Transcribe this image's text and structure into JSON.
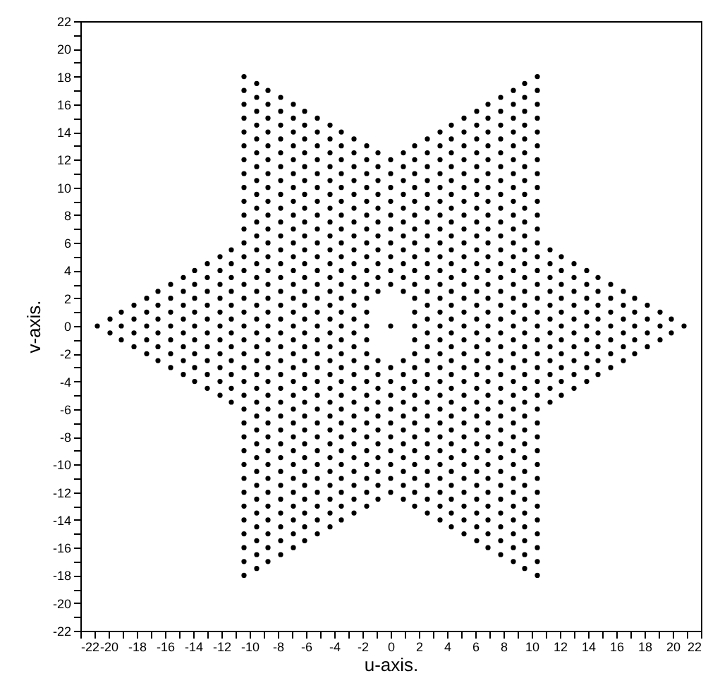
{
  "chart_data": {
    "type": "scatter",
    "xlabel": "u-axis.",
    "ylabel": "v-axis.",
    "marker": "circle",
    "grid": false,
    "xlim": [
      -22,
      22
    ],
    "ylim": [
      -22,
      22
    ],
    "xticks": [
      -22,
      {
        "value": -21,
        "label": null
      },
      -20,
      {
        "value": -19,
        "label": null
      },
      -18,
      {
        "value": -17,
        "label": null
      },
      -16,
      {
        "value": -15,
        "label": null
      },
      -14,
      {
        "value": -13,
        "label": null
      },
      -12,
      {
        "value": -11,
        "label": null
      },
      -10,
      {
        "value": -9,
        "label": null
      },
      -8,
      {
        "value": -7,
        "label": null
      },
      -6,
      {
        "value": -5,
        "label": null
      },
      -4,
      {
        "value": -3,
        "label": null
      },
      -2,
      {
        "value": -1,
        "label": null
      },
      0,
      {
        "value": 1,
        "label": null
      },
      2,
      {
        "value": 3,
        "label": null
      },
      4,
      {
        "value": 5,
        "label": null
      },
      6,
      {
        "value": 7,
        "label": null
      },
      8,
      {
        "value": 9,
        "label": null
      },
      10,
      {
        "value": 11,
        "label": null
      },
      12,
      {
        "value": 13,
        "label": null
      },
      14,
      {
        "value": 15,
        "label": null
      },
      16,
      {
        "value": 17,
        "label": null
      },
      18,
      {
        "value": 19,
        "label": null
      },
      20,
      {
        "value": 21,
        "label": null
      },
      22
    ],
    "yticks": [
      -22,
      {
        "value": -21,
        "label": null
      },
      -20,
      {
        "value": -19,
        "label": null
      },
      -18,
      {
        "value": -17,
        "label": null
      },
      -16,
      {
        "value": -15,
        "label": null
      },
      -14,
      {
        "value": -13,
        "label": null
      },
      -12,
      {
        "value": -11,
        "label": null
      },
      -10,
      {
        "value": -9,
        "label": null
      },
      -8,
      {
        "value": -7,
        "label": null
      },
      -6,
      {
        "value": -5,
        "label": null
      },
      -4,
      {
        "value": -3,
        "label": null
      },
      -2,
      {
        "value": -1,
        "label": null
      },
      0,
      {
        "value": 1,
        "label": null
      },
      2,
      {
        "value": 3,
        "label": null
      },
      4,
      {
        "value": 5,
        "label": null
      },
      6,
      {
        "value": 7,
        "label": null
      },
      8,
      {
        "value": 9,
        "label": null
      },
      10,
      {
        "value": 11,
        "label": null
      },
      12,
      {
        "value": 13,
        "label": null
      },
      14,
      {
        "value": 15,
        "label": null
      },
      16,
      {
        "value": 17,
        "label": null
      },
      18,
      {
        "value": 19,
        "label": null
      },
      20,
      {
        "value": 21,
        "label": null
      },
      22
    ],
    "series": [
      {
        "color": "#000000",
        "x": [
          -20.8
        ],
        "values": [
          0
        ]
      },
      {
        "color": "#000000",
        "x": [
          -19.9,
          -19.9
        ],
        "values": [
          -0.5,
          0.5
        ]
      },
      {
        "color": "#000000",
        "x": [
          -19.1,
          -19.1,
          -19.1
        ],
        "values": [
          -1,
          0,
          1
        ]
      },
      {
        "color": "#000000",
        "x": [
          -18.2,
          -18.2,
          -18.2,
          -18.2
        ],
        "values": [
          -1.5,
          -0.5,
          0.5,
          1.5
        ]
      },
      {
        "color": "#000000",
        "x": [
          -17.3,
          -17.3,
          -17.3,
          -17.3,
          -17.3
        ],
        "values": [
          -2,
          -1,
          0,
          1,
          2
        ]
      },
      {
        "color": "#000000",
        "x": [
          -16.5,
          -16.5,
          -16.5,
          -16.5,
          -16.5,
          -16.5
        ],
        "values": [
          -2.5,
          -1.5,
          -0.5,
          0.5,
          1.5,
          2.5
        ]
      },
      {
        "color": "#000000",
        "x": [
          -15.6,
          -15.6,
          -15.6,
          -15.6,
          -15.6,
          -15.6,
          -15.6
        ],
        "values": [
          -3,
          -2,
          -1,
          0,
          1,
          2,
          3
        ]
      },
      {
        "color": "#000000",
        "x": [
          -14.7,
          -14.7,
          -14.7,
          -14.7,
          -14.7,
          -14.7,
          -14.7,
          -14.7
        ],
        "values": [
          -3.5,
          -2.5,
          -1.5,
          -0.5,
          0.5,
          1.5,
          2.5,
          3.5
        ]
      },
      {
        "color": "#000000",
        "x": [
          -13.9,
          -13.9,
          -13.9,
          -13.9,
          -13.9,
          -13.9,
          -13.9,
          -13.9,
          -13.9
        ],
        "values": [
          -4,
          -3,
          -2,
          -1,
          0,
          1,
          2,
          3,
          4
        ]
      },
      {
        "color": "#000000",
        "x": [
          -13,
          -13,
          -13,
          -13,
          -13,
          -13,
          -13,
          -13,
          -13,
          -13
        ],
        "values": [
          -4.5,
          -3.5,
          -2.5,
          -1.5,
          -0.5,
          0.5,
          1.5,
          2.5,
          3.5,
          4.5
        ]
      },
      {
        "color": "#000000",
        "x": [
          -12.1,
          -12.1,
          -12.1,
          -12.1,
          -12.1,
          -12.1,
          -12.1,
          -12.1,
          -12.1,
          -12.1,
          -12.1
        ],
        "values": [
          -5,
          -4,
          -3,
          -2,
          -1,
          0,
          1,
          2,
          3,
          4,
          5
        ]
      },
      {
        "color": "#000000",
        "x": [
          -11.3,
          -11.3,
          -11.3,
          -11.3,
          -11.3,
          -11.3,
          -11.3,
          -11.3,
          -11.3,
          -11.3,
          -11.3,
          -11.3
        ],
        "values": [
          -5.5,
          -4.5,
          -3.5,
          -2.5,
          -1.5,
          -0.5,
          0.5,
          1.5,
          2.5,
          3.5,
          4.5,
          5.5
        ]
      },
      {
        "color": "#000000",
        "x": [
          -10.4,
          -10.4,
          -10.4,
          -10.4,
          -10.4,
          -10.4,
          -10.4,
          -10.4,
          -10.4,
          -10.4,
          -10.4,
          -10.4,
          -10.4,
          -10.4,
          -10.4,
          -10.4,
          -10.4,
          -10.4,
          -10.4,
          -10.4,
          -10.4,
          -10.4,
          -10.4,
          -10.4,
          -10.4,
          -10.4,
          -10.4,
          -10.4,
          -10.4,
          -10.4,
          -10.4,
          -10.4,
          -10.4,
          -10.4,
          -10.4,
          -10.4,
          -10.4
        ],
        "values": [
          -18,
          -17,
          -16,
          -15,
          -14,
          -13,
          -12,
          -11,
          -10,
          -9,
          -8,
          -7,
          -6,
          -5,
          -4,
          -3,
          -2,
          -1,
          0,
          1,
          2,
          3,
          4,
          5,
          6,
          7,
          8,
          9,
          10,
          11,
          12,
          13,
          14,
          15,
          16,
          17,
          18
        ]
      },
      {
        "color": "#000000",
        "x": [
          -9.5,
          -9.5,
          -9.5,
          -9.5,
          -9.5,
          -9.5,
          -9.5,
          -9.5,
          -9.5,
          -9.5,
          -9.5,
          -9.5,
          -9.5,
          -9.5,
          -9.5,
          -9.5,
          -9.5,
          -9.5,
          -9.5,
          -9.5,
          -9.5,
          -9.5,
          -9.5,
          -9.5,
          -9.5,
          -9.5,
          -9.5,
          -9.5,
          -9.5,
          -9.5,
          -9.5,
          -9.5,
          -9.5,
          -9.5,
          -9.5,
          -9.5
        ],
        "values": [
          -17.5,
          -16.5,
          -15.5,
          -14.5,
          -13.5,
          -12.5,
          -11.5,
          -10.5,
          -9.5,
          -8.5,
          -7.5,
          -6.5,
          -5.5,
          -4.5,
          -3.5,
          -2.5,
          -1.5,
          -0.5,
          0.5,
          1.5,
          2.5,
          3.5,
          4.5,
          5.5,
          6.5,
          7.5,
          8.5,
          9.5,
          10.5,
          11.5,
          12.5,
          13.5,
          14.5,
          15.5,
          16.5,
          17.5
        ]
      },
      {
        "color": "#000000",
        "x": [
          -8.7,
          -8.7,
          -8.7,
          -8.7,
          -8.7,
          -8.7,
          -8.7,
          -8.7,
          -8.7,
          -8.7,
          -8.7,
          -8.7,
          -8.7,
          -8.7,
          -8.7,
          -8.7,
          -8.7,
          -8.7,
          -8.7,
          -8.7,
          -8.7,
          -8.7,
          -8.7,
          -8.7,
          -8.7,
          -8.7,
          -8.7,
          -8.7,
          -8.7,
          -8.7,
          -8.7,
          -8.7,
          -8.7,
          -8.7,
          -8.7
        ],
        "values": [
          -17,
          -16,
          -15,
          -14,
          -13,
          -12,
          -11,
          -10,
          -9,
          -8,
          -7,
          -6,
          -5,
          -4,
          -3,
          -2,
          -1,
          0,
          1,
          2,
          3,
          4,
          5,
          6,
          7,
          8,
          9,
          10,
          11,
          12,
          13,
          14,
          15,
          16,
          17
        ]
      },
      {
        "color": "#000000",
        "x": [
          -7.8,
          -7.8,
          -7.8,
          -7.8,
          -7.8,
          -7.8,
          -7.8,
          -7.8,
          -7.8,
          -7.8,
          -7.8,
          -7.8,
          -7.8,
          -7.8,
          -7.8,
          -7.8,
          -7.8,
          -7.8,
          -7.8,
          -7.8,
          -7.8,
          -7.8,
          -7.8,
          -7.8,
          -7.8,
          -7.8,
          -7.8,
          -7.8,
          -7.8,
          -7.8,
          -7.8,
          -7.8,
          -7.8,
          -7.8
        ],
        "values": [
          -16.5,
          -15.5,
          -14.5,
          -13.5,
          -12.5,
          -11.5,
          -10.5,
          -9.5,
          -8.5,
          -7.5,
          -6.5,
          -5.5,
          -4.5,
          -3.5,
          -2.5,
          -1.5,
          -0.5,
          0.5,
          1.5,
          2.5,
          3.5,
          4.5,
          5.5,
          6.5,
          7.5,
          8.5,
          9.5,
          10.5,
          11.5,
          12.5,
          13.5,
          14.5,
          15.5,
          16.5
        ]
      },
      {
        "color": "#000000",
        "x": [
          -6.9,
          -6.9,
          -6.9,
          -6.9,
          -6.9,
          -6.9,
          -6.9,
          -6.9,
          -6.9,
          -6.9,
          -6.9,
          -6.9,
          -6.9,
          -6.9,
          -6.9,
          -6.9,
          -6.9,
          -6.9,
          -6.9,
          -6.9,
          -6.9,
          -6.9,
          -6.9,
          -6.9,
          -6.9,
          -6.9,
          -6.9,
          -6.9,
          -6.9,
          -6.9,
          -6.9,
          -6.9,
          -6.9
        ],
        "values": [
          -16,
          -15,
          -14,
          -13,
          -12,
          -11,
          -10,
          -9,
          -8,
          -7,
          -6,
          -5,
          -4,
          -3,
          -2,
          -1,
          0,
          1,
          2,
          3,
          4,
          5,
          6,
          7,
          8,
          9,
          10,
          11,
          12,
          13,
          14,
          15,
          16
        ]
      },
      {
        "color": "#000000",
        "x": [
          -6.1,
          -6.1,
          -6.1,
          -6.1,
          -6.1,
          -6.1,
          -6.1,
          -6.1,
          -6.1,
          -6.1,
          -6.1,
          -6.1,
          -6.1,
          -6.1,
          -6.1,
          -6.1,
          -6.1,
          -6.1,
          -6.1,
          -6.1,
          -6.1,
          -6.1,
          -6.1,
          -6.1,
          -6.1,
          -6.1,
          -6.1,
          -6.1,
          -6.1,
          -6.1,
          -6.1,
          -6.1
        ],
        "values": [
          -15.5,
          -14.5,
          -13.5,
          -12.5,
          -11.5,
          -10.5,
          -9.5,
          -8.5,
          -7.5,
          -6.5,
          -5.5,
          -4.5,
          -3.5,
          -2.5,
          -1.5,
          -0.5,
          0.5,
          1.5,
          2.5,
          3.5,
          4.5,
          5.5,
          6.5,
          7.5,
          8.5,
          9.5,
          10.5,
          11.5,
          12.5,
          13.5,
          14.5,
          15.5
        ]
      },
      {
        "color": "#000000",
        "x": [
          -5.2,
          -5.2,
          -5.2,
          -5.2,
          -5.2,
          -5.2,
          -5.2,
          -5.2,
          -5.2,
          -5.2,
          -5.2,
          -5.2,
          -5.2,
          -5.2,
          -5.2,
          -5.2,
          -5.2,
          -5.2,
          -5.2,
          -5.2,
          -5.2,
          -5.2,
          -5.2,
          -5.2,
          -5.2,
          -5.2,
          -5.2,
          -5.2,
          -5.2,
          -5.2,
          -5.2
        ],
        "values": [
          -15,
          -14,
          -13,
          -12,
          -11,
          -10,
          -9,
          -8,
          -7,
          -6,
          -5,
          -4,
          -3,
          -2,
          -1,
          0,
          1,
          2,
          3,
          4,
          5,
          6,
          7,
          8,
          9,
          10,
          11,
          12,
          13,
          14,
          15
        ]
      },
      {
        "color": "#000000",
        "x": [
          -4.3,
          -4.3,
          -4.3,
          -4.3,
          -4.3,
          -4.3,
          -4.3,
          -4.3,
          -4.3,
          -4.3,
          -4.3,
          -4.3,
          -4.3,
          -4.3,
          -4.3,
          -4.3,
          -4.3,
          -4.3,
          -4.3,
          -4.3,
          -4.3,
          -4.3,
          -4.3,
          -4.3,
          -4.3,
          -4.3,
          -4.3,
          -4.3,
          -4.3,
          -4.3
        ],
        "values": [
          -14.5,
          -13.5,
          -12.5,
          -11.5,
          -10.5,
          -9.5,
          -8.5,
          -7.5,
          -6.5,
          -5.5,
          -4.5,
          -3.5,
          -2.5,
          -1.5,
          -0.5,
          0.5,
          1.5,
          2.5,
          3.5,
          4.5,
          5.5,
          6.5,
          7.5,
          8.5,
          9.5,
          10.5,
          11.5,
          12.5,
          13.5,
          14.5
        ]
      },
      {
        "color": "#000000",
        "x": [
          -3.5,
          -3.5,
          -3.5,
          -3.5,
          -3.5,
          -3.5,
          -3.5,
          -3.5,
          -3.5,
          -3.5,
          -3.5,
          -3.5,
          -3.5,
          -3.5,
          -3.5,
          -3.5,
          -3.5,
          -3.5,
          -3.5,
          -3.5,
          -3.5,
          -3.5,
          -3.5,
          -3.5,
          -3.5,
          -3.5,
          -3.5,
          -3.5,
          -3.5
        ],
        "values": [
          -14,
          -13,
          -12,
          -11,
          -10,
          -9,
          -8,
          -7,
          -6,
          -5,
          -4,
          -3,
          -2,
          -1,
          0,
          1,
          2,
          3,
          4,
          5,
          6,
          7,
          8,
          9,
          10,
          11,
          12,
          13,
          14
        ]
      },
      {
        "color": "#000000",
        "x": [
          -2.6,
          -2.6,
          -2.6,
          -2.6,
          -2.6,
          -2.6,
          -2.6,
          -2.6,
          -2.6,
          -2.6,
          -2.6,
          -2.6,
          -2.6,
          -2.6,
          -2.6,
          -2.6,
          -2.6,
          -2.6,
          -2.6,
          -2.6,
          -2.6,
          -2.6,
          -2.6,
          -2.6,
          -2.6,
          -2.6,
          -2.6,
          -2.6
        ],
        "values": [
          -13.5,
          -12.5,
          -11.5,
          -10.5,
          -9.5,
          -8.5,
          -7.5,
          -6.5,
          -5.5,
          -4.5,
          -3.5,
          -2.5,
          -1.5,
          -0.5,
          0.5,
          1.5,
          2.5,
          3.5,
          4.5,
          5.5,
          6.5,
          7.5,
          8.5,
          9.5,
          10.5,
          11.5,
          12.5,
          13.5
        ]
      },
      {
        "color": "#000000",
        "x": [
          -1.7,
          -1.7,
          -1.7,
          -1.7,
          -1.7,
          -1.7,
          -1.7,
          -1.7,
          -1.7,
          -1.7,
          -1.7,
          -1.7,
          -1.7,
          -1.7,
          -1.7,
          -1.7,
          -1.7,
          -1.7,
          -1.7,
          -1.7,
          -1.7,
          -1.7,
          -1.7,
          -1.7,
          -1.7,
          -1.7,
          -1.7
        ],
        "values": [
          -13,
          -12,
          -11,
          -10,
          -9,
          -8,
          -7,
          -6,
          -5,
          -4,
          -3,
          -2,
          -1,
          0,
          1,
          2,
          3,
          4,
          5,
          6,
          7,
          8,
          9,
          10,
          11,
          12,
          13
        ]
      },
      {
        "color": "#000000",
        "x": [
          -0.9,
          -0.9,
          -0.9,
          -0.9,
          -0.9,
          -0.9,
          -0.9,
          -0.9,
          -0.9,
          -0.9,
          -0.9,
          -0.9,
          -0.9,
          -0.9,
          -0.9,
          -0.9,
          -0.9,
          -0.9,
          -0.9,
          -0.9,
          -0.9,
          -0.9
        ],
        "values": [
          -12.5,
          -11.5,
          -10.5,
          -9.5,
          -8.5,
          -7.5,
          -6.5,
          -5.5,
          -4.5,
          -3.5,
          -2.5,
          2.5,
          3.5,
          4.5,
          5.5,
          6.5,
          7.5,
          8.5,
          9.5,
          10.5,
          11.5,
          12.5
        ]
      },
      {
        "color": "#000000",
        "x": [
          0,
          0,
          0,
          0,
          0,
          0,
          0,
          0,
          0,
          0,
          0,
          0,
          0,
          0,
          0,
          0,
          0,
          0,
          0,
          0,
          0
        ],
        "values": [
          -12,
          -11,
          -10,
          -9,
          -8,
          -7,
          -6,
          -5,
          -4,
          -3,
          0,
          3,
          4,
          5,
          6,
          7,
          8,
          9,
          10,
          11,
          12
        ]
      },
      {
        "color": "#000000",
        "x": [
          0.9,
          0.9,
          0.9,
          0.9,
          0.9,
          0.9,
          0.9,
          0.9,
          0.9,
          0.9,
          0.9,
          0.9,
          0.9,
          0.9,
          0.9,
          0.9,
          0.9,
          0.9,
          0.9,
          0.9,
          0.9,
          0.9
        ],
        "values": [
          -12.5,
          -11.5,
          -10.5,
          -9.5,
          -8.5,
          -7.5,
          -6.5,
          -5.5,
          -4.5,
          -3.5,
          -2.5,
          2.5,
          3.5,
          4.5,
          5.5,
          6.5,
          7.5,
          8.5,
          9.5,
          10.5,
          11.5,
          12.5
        ]
      },
      {
        "color": "#000000",
        "x": [
          1.7,
          1.7,
          1.7,
          1.7,
          1.7,
          1.7,
          1.7,
          1.7,
          1.7,
          1.7,
          1.7,
          1.7,
          1.7,
          1.7,
          1.7,
          1.7,
          1.7,
          1.7,
          1.7,
          1.7,
          1.7,
          1.7,
          1.7,
          1.7,
          1.7,
          1.7,
          1.7
        ],
        "values": [
          -13,
          -12,
          -11,
          -10,
          -9,
          -8,
          -7,
          -6,
          -5,
          -4,
          -3,
          -2,
          -1,
          0,
          1,
          2,
          3,
          4,
          5,
          6,
          7,
          8,
          9,
          10,
          11,
          12,
          13
        ]
      },
      {
        "color": "#000000",
        "x": [
          2.6,
          2.6,
          2.6,
          2.6,
          2.6,
          2.6,
          2.6,
          2.6,
          2.6,
          2.6,
          2.6,
          2.6,
          2.6,
          2.6,
          2.6,
          2.6,
          2.6,
          2.6,
          2.6,
          2.6,
          2.6,
          2.6,
          2.6,
          2.6,
          2.6,
          2.6,
          2.6,
          2.6
        ],
        "values": [
          -13.5,
          -12.5,
          -11.5,
          -10.5,
          -9.5,
          -8.5,
          -7.5,
          -6.5,
          -5.5,
          -4.5,
          -3.5,
          -2.5,
          -1.5,
          -0.5,
          0.5,
          1.5,
          2.5,
          3.5,
          4.5,
          5.5,
          6.5,
          7.5,
          8.5,
          9.5,
          10.5,
          11.5,
          12.5,
          13.5
        ]
      },
      {
        "color": "#000000",
        "x": [
          3.5,
          3.5,
          3.5,
          3.5,
          3.5,
          3.5,
          3.5,
          3.5,
          3.5,
          3.5,
          3.5,
          3.5,
          3.5,
          3.5,
          3.5,
          3.5,
          3.5,
          3.5,
          3.5,
          3.5,
          3.5,
          3.5,
          3.5,
          3.5,
          3.5,
          3.5,
          3.5,
          3.5,
          3.5
        ],
        "values": [
          -14,
          -13,
          -12,
          -11,
          -10,
          -9,
          -8,
          -7,
          -6,
          -5,
          -4,
          -3,
          -2,
          -1,
          0,
          1,
          2,
          3,
          4,
          5,
          6,
          7,
          8,
          9,
          10,
          11,
          12,
          13,
          14
        ]
      },
      {
        "color": "#000000",
        "x": [
          4.3,
          4.3,
          4.3,
          4.3,
          4.3,
          4.3,
          4.3,
          4.3,
          4.3,
          4.3,
          4.3,
          4.3,
          4.3,
          4.3,
          4.3,
          4.3,
          4.3,
          4.3,
          4.3,
          4.3,
          4.3,
          4.3,
          4.3,
          4.3,
          4.3,
          4.3,
          4.3,
          4.3,
          4.3,
          4.3
        ],
        "values": [
          -14.5,
          -13.5,
          -12.5,
          -11.5,
          -10.5,
          -9.5,
          -8.5,
          -7.5,
          -6.5,
          -5.5,
          -4.5,
          -3.5,
          -2.5,
          -1.5,
          -0.5,
          0.5,
          1.5,
          2.5,
          3.5,
          4.5,
          5.5,
          6.5,
          7.5,
          8.5,
          9.5,
          10.5,
          11.5,
          12.5,
          13.5,
          14.5
        ]
      },
      {
        "color": "#000000",
        "x": [
          5.2,
          5.2,
          5.2,
          5.2,
          5.2,
          5.2,
          5.2,
          5.2,
          5.2,
          5.2,
          5.2,
          5.2,
          5.2,
          5.2,
          5.2,
          5.2,
          5.2,
          5.2,
          5.2,
          5.2,
          5.2,
          5.2,
          5.2,
          5.2,
          5.2,
          5.2,
          5.2,
          5.2,
          5.2,
          5.2,
          5.2
        ],
        "values": [
          -15,
          -14,
          -13,
          -12,
          -11,
          -10,
          -9,
          -8,
          -7,
          -6,
          -5,
          -4,
          -3,
          -2,
          -1,
          0,
          1,
          2,
          3,
          4,
          5,
          6,
          7,
          8,
          9,
          10,
          11,
          12,
          13,
          14,
          15
        ]
      },
      {
        "color": "#000000",
        "x": [
          6.1,
          6.1,
          6.1,
          6.1,
          6.1,
          6.1,
          6.1,
          6.1,
          6.1,
          6.1,
          6.1,
          6.1,
          6.1,
          6.1,
          6.1,
          6.1,
          6.1,
          6.1,
          6.1,
          6.1,
          6.1,
          6.1,
          6.1,
          6.1,
          6.1,
          6.1,
          6.1,
          6.1,
          6.1,
          6.1,
          6.1,
          6.1
        ],
        "values": [
          -15.5,
          -14.5,
          -13.5,
          -12.5,
          -11.5,
          -10.5,
          -9.5,
          -8.5,
          -7.5,
          -6.5,
          -5.5,
          -4.5,
          -3.5,
          -2.5,
          -1.5,
          -0.5,
          0.5,
          1.5,
          2.5,
          3.5,
          4.5,
          5.5,
          6.5,
          7.5,
          8.5,
          9.5,
          10.5,
          11.5,
          12.5,
          13.5,
          14.5,
          15.5
        ]
      },
      {
        "color": "#000000",
        "x": [
          6.9,
          6.9,
          6.9,
          6.9,
          6.9,
          6.9,
          6.9,
          6.9,
          6.9,
          6.9,
          6.9,
          6.9,
          6.9,
          6.9,
          6.9,
          6.9,
          6.9,
          6.9,
          6.9,
          6.9,
          6.9,
          6.9,
          6.9,
          6.9,
          6.9,
          6.9,
          6.9,
          6.9,
          6.9,
          6.9,
          6.9,
          6.9,
          6.9
        ],
        "values": [
          -16,
          -15,
          -14,
          -13,
          -12,
          -11,
          -10,
          -9,
          -8,
          -7,
          -6,
          -5,
          -4,
          -3,
          -2,
          -1,
          0,
          1,
          2,
          3,
          4,
          5,
          6,
          7,
          8,
          9,
          10,
          11,
          12,
          13,
          14,
          15,
          16
        ]
      },
      {
        "color": "#000000",
        "x": [
          7.8,
          7.8,
          7.8,
          7.8,
          7.8,
          7.8,
          7.8,
          7.8,
          7.8,
          7.8,
          7.8,
          7.8,
          7.8,
          7.8,
          7.8,
          7.8,
          7.8,
          7.8,
          7.8,
          7.8,
          7.8,
          7.8,
          7.8,
          7.8,
          7.8,
          7.8,
          7.8,
          7.8,
          7.8,
          7.8,
          7.8,
          7.8,
          7.8,
          7.8
        ],
        "values": [
          -16.5,
          -15.5,
          -14.5,
          -13.5,
          -12.5,
          -11.5,
          -10.5,
          -9.5,
          -8.5,
          -7.5,
          -6.5,
          -5.5,
          -4.5,
          -3.5,
          -2.5,
          -1.5,
          -0.5,
          0.5,
          1.5,
          2.5,
          3.5,
          4.5,
          5.5,
          6.5,
          7.5,
          8.5,
          9.5,
          10.5,
          11.5,
          12.5,
          13.5,
          14.5,
          15.5,
          16.5
        ]
      },
      {
        "color": "#000000",
        "x": [
          8.7,
          8.7,
          8.7,
          8.7,
          8.7,
          8.7,
          8.7,
          8.7,
          8.7,
          8.7,
          8.7,
          8.7,
          8.7,
          8.7,
          8.7,
          8.7,
          8.7,
          8.7,
          8.7,
          8.7,
          8.7,
          8.7,
          8.7,
          8.7,
          8.7,
          8.7,
          8.7,
          8.7,
          8.7,
          8.7,
          8.7,
          8.7,
          8.7,
          8.7,
          8.7
        ],
        "values": [
          -17,
          -16,
          -15,
          -14,
          -13,
          -12,
          -11,
          -10,
          -9,
          -8,
          -7,
          -6,
          -5,
          -4,
          -3,
          -2,
          -1,
          0,
          1,
          2,
          3,
          4,
          5,
          6,
          7,
          8,
          9,
          10,
          11,
          12,
          13,
          14,
          15,
          16,
          17
        ]
      },
      {
        "color": "#000000",
        "x": [
          9.5,
          9.5,
          9.5,
          9.5,
          9.5,
          9.5,
          9.5,
          9.5,
          9.5,
          9.5,
          9.5,
          9.5,
          9.5,
          9.5,
          9.5,
          9.5,
          9.5,
          9.5,
          9.5,
          9.5,
          9.5,
          9.5,
          9.5,
          9.5,
          9.5,
          9.5,
          9.5,
          9.5,
          9.5,
          9.5,
          9.5,
          9.5,
          9.5,
          9.5,
          9.5,
          9.5
        ],
        "values": [
          -17.5,
          -16.5,
          -15.5,
          -14.5,
          -13.5,
          -12.5,
          -11.5,
          -10.5,
          -9.5,
          -8.5,
          -7.5,
          -6.5,
          -5.5,
          -4.5,
          -3.5,
          -2.5,
          -1.5,
          -0.5,
          0.5,
          1.5,
          2.5,
          3.5,
          4.5,
          5.5,
          6.5,
          7.5,
          8.5,
          9.5,
          10.5,
          11.5,
          12.5,
          13.5,
          14.5,
          15.5,
          16.5,
          17.5
        ]
      },
      {
        "color": "#000000",
        "x": [
          10.4,
          10.4,
          10.4,
          10.4,
          10.4,
          10.4,
          10.4,
          10.4,
          10.4,
          10.4,
          10.4,
          10.4,
          10.4,
          10.4,
          10.4,
          10.4,
          10.4,
          10.4,
          10.4,
          10.4,
          10.4,
          10.4,
          10.4,
          10.4,
          10.4,
          10.4,
          10.4,
          10.4,
          10.4,
          10.4,
          10.4,
          10.4,
          10.4,
          10.4,
          10.4,
          10.4,
          10.4
        ],
        "values": [
          -18,
          -17,
          -16,
          -15,
          -14,
          -13,
          -12,
          -11,
          -10,
          -9,
          -8,
          -7,
          -6,
          -5,
          -4,
          -3,
          -2,
          -1,
          0,
          1,
          2,
          3,
          4,
          5,
          6,
          7,
          8,
          9,
          10,
          11,
          12,
          13,
          14,
          15,
          16,
          17,
          18
        ]
      },
      {
        "color": "#000000",
        "x": [
          11.3,
          11.3,
          11.3,
          11.3,
          11.3,
          11.3,
          11.3,
          11.3,
          11.3,
          11.3,
          11.3,
          11.3
        ],
        "values": [
          -5.5,
          -4.5,
          -3.5,
          -2.5,
          -1.5,
          -0.5,
          0.5,
          1.5,
          2.5,
          3.5,
          4.5,
          5.5
        ]
      },
      {
        "color": "#000000",
        "x": [
          12.1,
          12.1,
          12.1,
          12.1,
          12.1,
          12.1,
          12.1,
          12.1,
          12.1,
          12.1,
          12.1
        ],
        "values": [
          -5,
          -4,
          -3,
          -2,
          -1,
          0,
          1,
          2,
          3,
          4,
          5
        ]
      },
      {
        "color": "#000000",
        "x": [
          13,
          13,
          13,
          13,
          13,
          13,
          13,
          13,
          13,
          13
        ],
        "values": [
          -4.5,
          -3.5,
          -2.5,
          -1.5,
          -0.5,
          0.5,
          1.5,
          2.5,
          3.5,
          4.5
        ]
      },
      {
        "color": "#000000",
        "x": [
          13.9,
          13.9,
          13.9,
          13.9,
          13.9,
          13.9,
          13.9,
          13.9,
          13.9
        ],
        "values": [
          -4,
          -3,
          -2,
          -1,
          0,
          1,
          2,
          3,
          4
        ]
      },
      {
        "color": "#000000",
        "x": [
          14.7,
          14.7,
          14.7,
          14.7,
          14.7,
          14.7,
          14.7,
          14.7
        ],
        "values": [
          -3.5,
          -2.5,
          -1.5,
          -0.5,
          0.5,
          1.5,
          2.5,
          3.5
        ]
      },
      {
        "color": "#000000",
        "x": [
          15.6,
          15.6,
          15.6,
          15.6,
          15.6,
          15.6,
          15.6
        ],
        "values": [
          -3,
          -2,
          -1,
          0,
          1,
          2,
          3
        ]
      },
      {
        "color": "#000000",
        "x": [
          16.5,
          16.5,
          16.5,
          16.5,
          16.5,
          16.5
        ],
        "values": [
          -2.5,
          -1.5,
          -0.5,
          0.5,
          1.5,
          2.5
        ]
      },
      {
        "color": "#000000",
        "x": [
          17.3,
          17.3,
          17.3,
          17.3,
          17.3
        ],
        "values": [
          -2,
          -1,
          0,
          1,
          2
        ]
      },
      {
        "color": "#000000",
        "x": [
          18.2,
          18.2,
          18.2,
          18.2
        ],
        "values": [
          -1.5,
          -0.5,
          0.5,
          1.5
        ]
      },
      {
        "color": "#000000",
        "x": [
          19.1,
          19.1,
          19.1
        ],
        "values": [
          -1,
          0,
          1
        ]
      },
      {
        "color": "#000000",
        "x": [
          19.9,
          19.9
        ],
        "values": [
          -0.5,
          0.5
        ]
      },
      {
        "color": "#000000",
        "x": [
          20.8
        ],
        "values": [
          0
        ]
      }
    ]
  }
}
